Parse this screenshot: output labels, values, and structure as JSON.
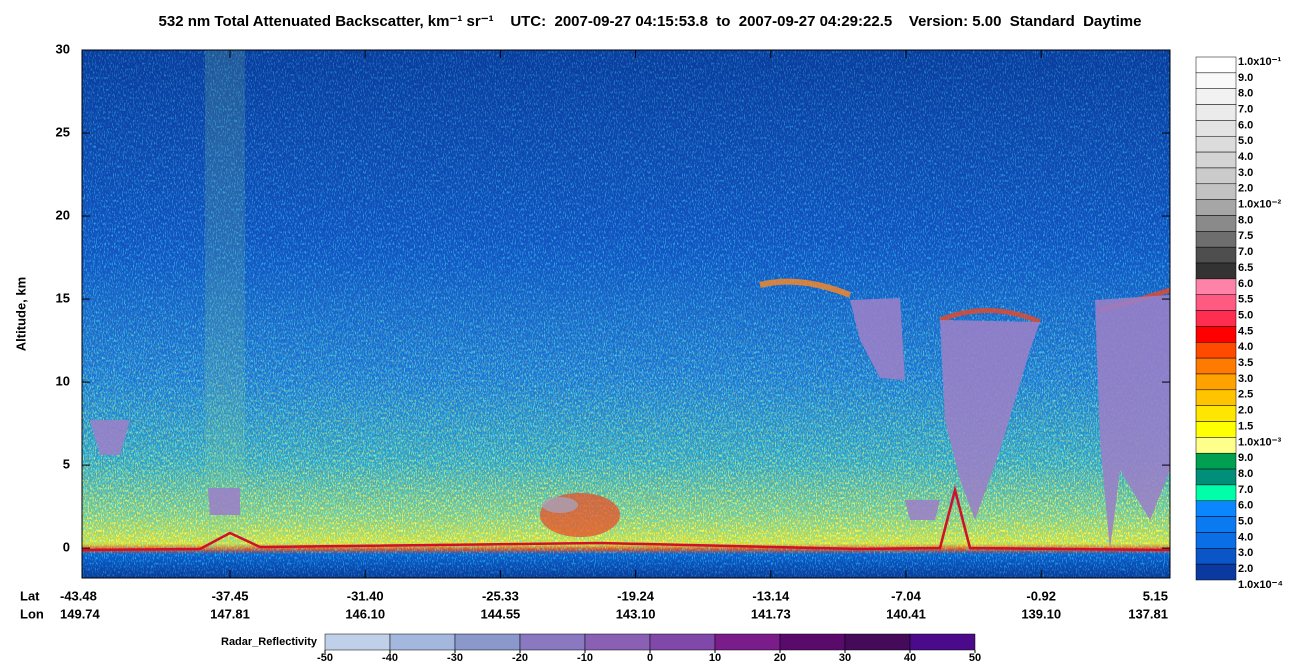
{
  "chart_data": {
    "type": "curtain",
    "title": "532 nm Total Attenuated Backscatter, km⁻¹ sr⁻¹",
    "time_range": "UTC:  2007-09-27 04:15:53.8  to  2007-09-27 04:29:22.5",
    "version": "Version: 5.00  Standard  Daytime",
    "ylabel": "Altitude, km",
    "ylim": [
      -1.8,
      30
    ],
    "yticks": [
      0,
      5,
      10,
      15,
      20,
      25,
      30
    ],
    "x_row_labels": [
      "Lat",
      "Lon"
    ],
    "lat": [
      "-43.48",
      "-37.45",
      "-31.40",
      "-25.33",
      "-19.24",
      "-13.14",
      "-7.04",
      "-0.92",
      "5.15"
    ],
    "lon": [
      "149.74",
      "147.81",
      "146.10",
      "144.55",
      "143.10",
      "141.73",
      "140.41",
      "139.10",
      "137.81"
    ],
    "colorbar": {
      "labels": [
        "1.0x10⁻¹",
        "9.0",
        "8.0",
        "7.0",
        "6.0",
        "5.0",
        "4.0",
        "3.0",
        "2.0",
        "1.0x10⁻²",
        "8.0",
        "7.5",
        "7.0",
        "6.5",
        "6.0",
        "5.5",
        "5.0",
        "4.5",
        "4.0",
        "3.5",
        "3.0",
        "2.5",
        "2.0",
        "1.5",
        "1.0x10⁻³",
        "9.0",
        "8.0",
        "7.0",
        "6.0",
        "5.0",
        "4.0",
        "3.0",
        "2.0",
        "1.0x10⁻⁴"
      ],
      "colors": [
        "#ffffff",
        "#f9f9f9",
        "#f2f2f2",
        "#ebebeb",
        "#e3e3e3",
        "#dcdcdc",
        "#d4d4d4",
        "#cbcbcb",
        "#c2c2c2",
        "#a6a6a6",
        "#8a8a8a",
        "#6e6e6e",
        "#4e4e4e",
        "#333333",
        "#ff82a8",
        "#ff5a82",
        "#ff2e50",
        "#ff0000",
        "#ff4a00",
        "#ff7a00",
        "#ffa200",
        "#ffc400",
        "#ffe600",
        "#ffff00",
        "#ffff8c",
        "#00a050",
        "#00907a",
        "#00ffa8",
        "#0a86ff",
        "#0a7af2",
        "#0a6ee6",
        "#0a56c8",
        "#0a3aa0"
      ]
    },
    "radar_colorbar": {
      "title": "Radar_Reflectivity",
      "ticks": [
        -50,
        -40,
        -30,
        -20,
        -10,
        0,
        10,
        20,
        30,
        40,
        50
      ],
      "colors": [
        "#c0d0e8",
        "#a4b8de",
        "#8a98cc",
        "#8a78c0",
        "#8a60b4",
        "#8048a8",
        "#7a1c8a",
        "#5a0a6a",
        "#460a5a",
        "#4a0a8a"
      ]
    }
  }
}
